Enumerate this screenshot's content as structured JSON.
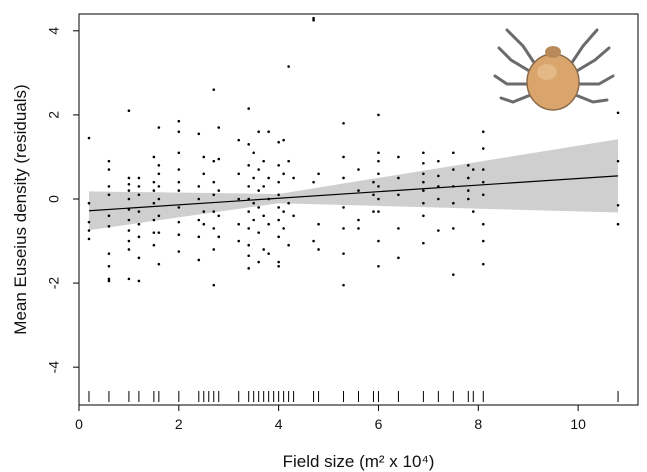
{
  "chart_data": {
    "type": "scatter",
    "xlabel": "Field size (m² x 10⁴)",
    "ylabel": "Mean Euseius density (residuals)",
    "xlim": [
      0,
      11.2
    ],
    "ylim": [
      -4.9,
      4.4
    ],
    "xticks": [
      0,
      2,
      4,
      6,
      8,
      10
    ],
    "yticks": [
      -4,
      -2,
      0,
      2,
      4
    ],
    "grid": false,
    "series": [
      {
        "type": "scatter",
        "points": [
          [
            0.2,
            1.45
          ],
          [
            0.2,
            -0.95
          ],
          [
            0.2,
            -0.75
          ],
          [
            0.2,
            -0.55
          ],
          [
            0.2,
            -0.1
          ],
          [
            0.6,
            0.9
          ],
          [
            0.6,
            0.7
          ],
          [
            0.6,
            0.3
          ],
          [
            0.6,
            0.1
          ],
          [
            0.6,
            -0.4
          ],
          [
            0.6,
            -1.3
          ],
          [
            0.6,
            -1.6
          ],
          [
            0.6,
            -1.9
          ],
          [
            0.6,
            -1.95
          ],
          [
            0.6,
            -0.65
          ],
          [
            1.0,
            2.1
          ],
          [
            1.0,
            0.5
          ],
          [
            1.0,
            0.35
          ],
          [
            1.0,
            0.2
          ],
          [
            1.0,
            0.0
          ],
          [
            1.0,
            -0.25
          ],
          [
            1.0,
            -0.5
          ],
          [
            1.0,
            -0.75
          ],
          [
            1.0,
            -1.0
          ],
          [
            1.0,
            -1.2
          ],
          [
            1.0,
            -1.9
          ],
          [
            1.2,
            0.5
          ],
          [
            1.2,
            0.3
          ],
          [
            1.2,
            0.1
          ],
          [
            1.2,
            -0.3
          ],
          [
            1.2,
            -0.6
          ],
          [
            1.2,
            -0.9
          ],
          [
            1.2,
            -1.4
          ],
          [
            1.2,
            -1.95
          ],
          [
            1.5,
            1.0
          ],
          [
            1.5,
            0.4
          ],
          [
            1.5,
            0.2
          ],
          [
            1.5,
            -0.1
          ],
          [
            1.5,
            -0.5
          ],
          [
            1.5,
            -0.8
          ],
          [
            1.5,
            -1.1
          ],
          [
            1.6,
            1.7
          ],
          [
            1.6,
            0.8
          ],
          [
            1.6,
            0.6
          ],
          [
            1.6,
            0.3
          ],
          [
            1.6,
            0.0
          ],
          [
            1.6,
            -0.4
          ],
          [
            1.6,
            -0.8
          ],
          [
            1.6,
            -1.55
          ],
          [
            2.0,
            1.85
          ],
          [
            2.0,
            1.6
          ],
          [
            2.0,
            1.1
          ],
          [
            2.0,
            0.7
          ],
          [
            2.0,
            0.4
          ],
          [
            2.0,
            0.2
          ],
          [
            2.0,
            -0.2
          ],
          [
            2.0,
            -0.55
          ],
          [
            2.0,
            -0.85
          ],
          [
            2.0,
            -1.25
          ],
          [
            2.4,
            1.55
          ],
          [
            2.4,
            0.3
          ],
          [
            2.4,
            0.0
          ],
          [
            2.4,
            -0.5
          ],
          [
            2.4,
            -0.9
          ],
          [
            2.4,
            -1.45
          ],
          [
            2.5,
            1.0
          ],
          [
            2.5,
            0.6
          ],
          [
            2.5,
            -0.3
          ],
          [
            2.5,
            -0.6
          ],
          [
            2.7,
            2.6
          ],
          [
            2.7,
            0.9
          ],
          [
            2.7,
            0.4
          ],
          [
            2.7,
            0.1
          ],
          [
            2.7,
            -0.3
          ],
          [
            2.7,
            -0.7
          ],
          [
            2.7,
            -1.2
          ],
          [
            2.7,
            -2.05
          ],
          [
            2.8,
            1.7
          ],
          [
            2.8,
            0.95
          ],
          [
            2.8,
            0.2
          ],
          [
            2.8,
            -0.4
          ],
          [
            2.8,
            -0.9
          ],
          [
            3.2,
            1.4
          ],
          [
            3.2,
            0.6
          ],
          [
            3.2,
            0.0
          ],
          [
            3.2,
            -0.6
          ],
          [
            3.2,
            -1.0
          ],
          [
            3.4,
            2.15
          ],
          [
            3.4,
            1.3
          ],
          [
            3.4,
            0.8
          ],
          [
            3.4,
            0.3
          ],
          [
            3.4,
            0.0
          ],
          [
            3.4,
            -0.3
          ],
          [
            3.4,
            -0.7
          ],
          [
            3.4,
            -1.1
          ],
          [
            3.4,
            -1.35
          ],
          [
            3.4,
            -1.65
          ],
          [
            3.5,
            1.1
          ],
          [
            3.5,
            0.5
          ],
          [
            3.5,
            -0.1
          ],
          [
            3.5,
            -0.5
          ],
          [
            3.6,
            1.6
          ],
          [
            3.6,
            0.7
          ],
          [
            3.6,
            0.2
          ],
          [
            3.6,
            -0.2
          ],
          [
            3.6,
            -0.8
          ],
          [
            3.6,
            -1.5
          ],
          [
            3.7,
            0.9
          ],
          [
            3.7,
            0.3
          ],
          [
            3.7,
            -0.4
          ],
          [
            3.7,
            -1.2
          ],
          [
            3.8,
            1.6
          ],
          [
            3.8,
            0.5
          ],
          [
            3.8,
            0.0
          ],
          [
            3.8,
            -0.6
          ],
          [
            3.8,
            -1.3
          ],
          [
            4.0,
            1.35
          ],
          [
            4.0,
            0.8
          ],
          [
            4.0,
            0.4
          ],
          [
            4.0,
            0.1
          ],
          [
            4.0,
            -0.2
          ],
          [
            4.0,
            -0.5
          ],
          [
            4.0,
            -0.9
          ],
          [
            4.0,
            -1.5
          ],
          [
            4.0,
            -1.6
          ],
          [
            4.1,
            1.4
          ],
          [
            4.1,
            0.6
          ],
          [
            4.1,
            -0.3
          ],
          [
            4.1,
            -0.7
          ],
          [
            4.2,
            3.15
          ],
          [
            4.2,
            0.9
          ],
          [
            4.2,
            -0.1
          ],
          [
            4.2,
            -1.1
          ],
          [
            4.3,
            0.5
          ],
          [
            4.3,
            -0.4
          ],
          [
            4.7,
            4.3
          ],
          [
            4.7,
            4.25
          ],
          [
            4.7,
            0.4
          ],
          [
            4.7,
            -1.0
          ],
          [
            4.8,
            0.6
          ],
          [
            4.8,
            -0.6
          ],
          [
            4.8,
            -1.2
          ],
          [
            5.3,
            1.8
          ],
          [
            5.3,
            1.0
          ],
          [
            5.3,
            0.5
          ],
          [
            5.3,
            -0.2
          ],
          [
            5.3,
            -0.7
          ],
          [
            5.3,
            -1.3
          ],
          [
            5.3,
            -2.05
          ],
          [
            5.6,
            0.7
          ],
          [
            5.6,
            0.2
          ],
          [
            5.6,
            -0.5
          ],
          [
            5.6,
            -0.7
          ],
          [
            5.9,
            0.4
          ],
          [
            5.9,
            0.1
          ],
          [
            5.9,
            -0.3
          ],
          [
            6.0,
            2.0
          ],
          [
            6.0,
            1.1
          ],
          [
            6.0,
            0.9
          ],
          [
            6.0,
            0.6
          ],
          [
            6.0,
            0.3
          ],
          [
            6.0,
            0.0
          ],
          [
            6.0,
            -0.3
          ],
          [
            6.0,
            -1.0
          ],
          [
            6.0,
            -1.6
          ],
          [
            6.4,
            1.0
          ],
          [
            6.4,
            0.5
          ],
          [
            6.4,
            0.1
          ],
          [
            6.4,
            -0.7
          ],
          [
            6.4,
            -1.4
          ],
          [
            6.9,
            1.1
          ],
          [
            6.9,
            0.85
          ],
          [
            6.9,
            0.6
          ],
          [
            6.9,
            0.4
          ],
          [
            6.9,
            0.2
          ],
          [
            6.9,
            -0.1
          ],
          [
            6.9,
            -0.4
          ],
          [
            6.9,
            -1.05
          ],
          [
            7.2,
            0.9
          ],
          [
            7.2,
            0.55
          ],
          [
            7.2,
            0.3
          ],
          [
            7.2,
            0.0
          ],
          [
            7.2,
            -0.75
          ],
          [
            7.5,
            1.1
          ],
          [
            7.5,
            0.7
          ],
          [
            7.5,
            0.3
          ],
          [
            7.5,
            -0.1
          ],
          [
            7.5,
            -0.7
          ],
          [
            7.5,
            -1.8
          ],
          [
            7.8,
            0.8
          ],
          [
            7.8,
            0.5
          ],
          [
            7.8,
            0.2
          ],
          [
            7.8,
            0.0
          ],
          [
            7.9,
            0.7
          ],
          [
            7.9,
            -0.3
          ],
          [
            8.1,
            1.6
          ],
          [
            8.1,
            1.2
          ],
          [
            8.1,
            0.7
          ],
          [
            8.1,
            0.4
          ],
          [
            8.1,
            0.1
          ],
          [
            8.1,
            -0.6
          ],
          [
            8.1,
            -1.0
          ],
          [
            8.1,
            -1.55
          ],
          [
            10.8,
            2.05
          ],
          [
            10.8,
            0.9
          ],
          [
            10.8,
            -0.15
          ],
          [
            10.8,
            -0.6
          ]
        ]
      },
      {
        "type": "line",
        "x": [
          0.2,
          10.8
        ],
        "y": [
          -0.28,
          0.55
        ]
      },
      {
        "type": "area",
        "x": [
          0.2,
          4.0,
          10.8
        ],
        "upper": [
          0.18,
          0.12,
          1.42
        ],
        "lower": [
          -0.74,
          -0.1,
          -0.32
        ]
      }
    ],
    "rug_x": [
      0.2,
      0.6,
      1.0,
      1.2,
      1.5,
      1.6,
      2.0,
      2.4,
      2.5,
      2.6,
      2.7,
      2.8,
      3.2,
      3.4,
      3.5,
      3.6,
      3.7,
      3.8,
      3.9,
      4.0,
      4.1,
      4.2,
      4.3,
      4.7,
      4.8,
      5.3,
      5.6,
      5.9,
      6.0,
      6.4,
      6.9,
      7.2,
      7.5,
      7.8,
      7.9,
      8.1,
      10.8
    ],
    "colors": {
      "points": "#000000",
      "line": "#000000",
      "band": "#cfcfcf",
      "axis": "#000000"
    },
    "inset_image": "mite-illustration"
  }
}
